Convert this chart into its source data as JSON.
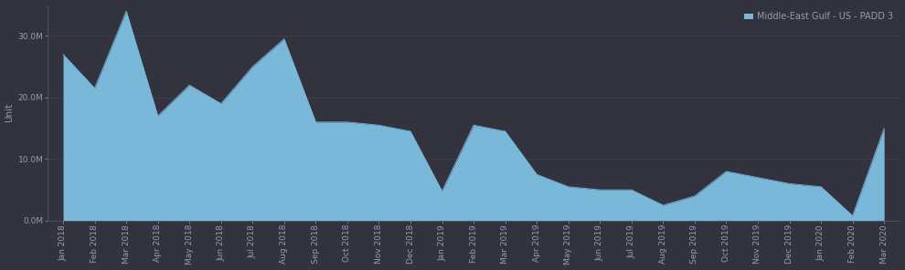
{
  "background_color": "#333340",
  "plot_bg_color": "#333340",
  "area_color": "#7ab8d9",
  "area_alpha": 1.0,
  "line_color": "#7ab8d9",
  "legend_label": "Middle-East Gulf - US - PADD 3",
  "ylabel": "Unit",
  "ylim": [
    0,
    35000000
  ],
  "yticks": [
    0,
    10000000,
    20000000,
    30000000
  ],
  "ytick_labels": [
    "0.0M",
    "10.0M",
    "20.0M",
    "30.0M"
  ],
  "months": [
    "Jan 2018",
    "Feb 2018",
    "Mar 2018",
    "Apr 2018",
    "May 2018",
    "Jun 2018",
    "Jul 2018",
    "Aug 2018",
    "Sep 2018",
    "Oct 2018",
    "Nov 2018",
    "Dec 2018",
    "Jan 2019",
    "Feb 2019",
    "Mar 2019",
    "Apr 2019",
    "May 2019",
    "Jun 2019",
    "Jul 2019",
    "Aug 2019",
    "Sep 2019",
    "Oct 2019",
    "Nov 2019",
    "Dec 2019",
    "Jan 2020",
    "Feb 2020",
    "Mar 2020"
  ],
  "values": [
    27000000,
    21500000,
    34000000,
    17000000,
    22000000,
    19000000,
    25000000,
    29500000,
    16000000,
    16000000,
    15500000,
    14500000,
    4800000,
    15500000,
    14500000,
    7500000,
    5500000,
    5000000,
    5000000,
    2500000,
    4000000,
    8000000,
    7000000,
    6000000,
    5500000,
    800000,
    15000000
  ],
  "tick_color": "#999aaa",
  "tick_fontsize": 6.5,
  "ylabel_fontsize": 7.5,
  "legend_fontsize": 7,
  "grid_color": "#44445a",
  "spine_color": "#555566"
}
